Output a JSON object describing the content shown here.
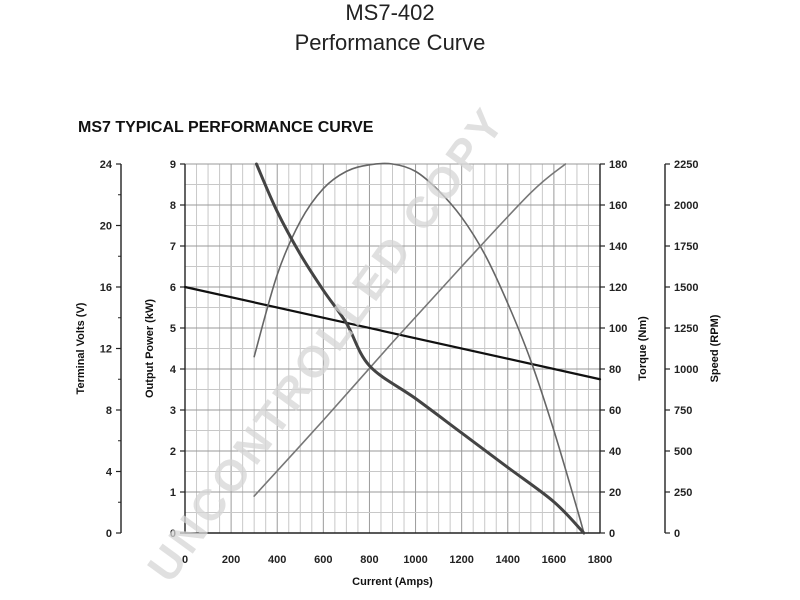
{
  "page": {
    "title_line1": "MS7-402",
    "title_line2": "Performance Curve",
    "chart_heading": "MS7 TYPICAL PERFORMANCE CURVE",
    "watermark": "UNCONTROLLED COPY"
  },
  "chart_data": {
    "type": "line",
    "title": "MS7 TYPICAL PERFORMANCE CURVE",
    "xlabel": "Current (Amps)",
    "xlim": [
      0,
      1800
    ],
    "x_ticks": [
      "0",
      "200",
      "400",
      "600",
      "800",
      "1000",
      "1200",
      "1400",
      "1600",
      "1800"
    ],
    "grid": true,
    "axes": {
      "terminal_volts": {
        "label": "Terminal Volts (V)",
        "lim": [
          0,
          24
        ],
        "ticks": [
          "0",
          "4",
          "8",
          "12",
          "16",
          "20",
          "24"
        ]
      },
      "output_power": {
        "label": "Output Power (kW)",
        "lim": [
          0,
          9
        ],
        "ticks": [
          "0",
          "1",
          "2",
          "3",
          "4",
          "5",
          "6",
          "7",
          "8",
          "9"
        ]
      },
      "torque": {
        "label": "Torque (Nm)",
        "lim": [
          0,
          180
        ],
        "ticks": [
          "0",
          "20",
          "40",
          "60",
          "80",
          "100",
          "120",
          "140",
          "160",
          "180"
        ]
      },
      "speed": {
        "label": "Speed (RPM)",
        "lim": [
          0,
          2250
        ],
        "ticks": [
          "0",
          "250",
          "500",
          "750",
          "1000",
          "1250",
          "1500",
          "1750",
          "2000",
          "2250"
        ]
      }
    },
    "series": [
      {
        "axis": "terminal_volts",
        "color": "#111111",
        "width": 2.2,
        "x": [
          0,
          1800
        ],
        "y": [
          16.0,
          10.0
        ]
      },
      {
        "axis": "output_power",
        "color": "#666666",
        "width": 1.6,
        "x": [
          300,
          400,
          500,
          600,
          700,
          800,
          900,
          1000,
          1100,
          1200,
          1300,
          1400,
          1500,
          1600,
          1700,
          1730
        ],
        "y": [
          4.3,
          6.3,
          7.6,
          8.4,
          8.82,
          8.98,
          9.0,
          8.82,
          8.35,
          7.7,
          6.8,
          5.6,
          4.2,
          2.5,
          0.6,
          0
        ]
      },
      {
        "axis": "torque",
        "color": "#777777",
        "width": 1.6,
        "x": [
          300,
          600,
          900,
          1200,
          1500,
          1650
        ],
        "y": [
          18,
          55,
          93,
          130,
          166,
          180
        ]
      },
      {
        "axis": "speed",
        "color": "#444444",
        "width": 3,
        "x": [
          310,
          400,
          500,
          600,
          700,
          800,
          1000,
          1200,
          1400,
          1600,
          1730
        ],
        "y": [
          2250,
          1960,
          1700,
          1480,
          1280,
          1020,
          820,
          610,
          400,
          190,
          0
        ]
      }
    ]
  }
}
